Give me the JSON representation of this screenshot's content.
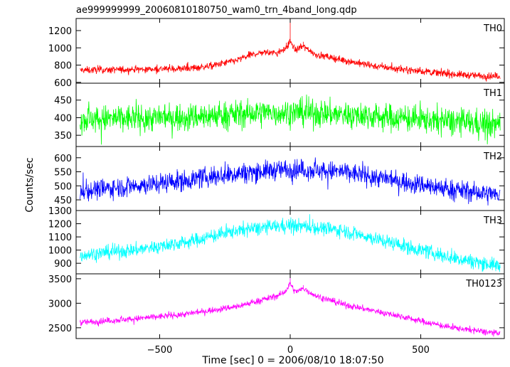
{
  "chart_data": {
    "type": "line",
    "title": "ae999999999_20060810180750_wam0_trn_4band_long.qdp",
    "xlabel": "Time [sec] 0 = 2006/08/10 18:07:50",
    "ylabel": "Counts/sec",
    "xlim": [
      -820,
      820
    ],
    "x_ticks": [
      -500,
      0,
      500
    ],
    "grid": false,
    "panels": [
      {
        "name": "TH0",
        "color": "#ff0000",
        "ylim": [
          590,
          1340
        ],
        "y_ticks": [
          600,
          800,
          1000,
          1200
        ],
        "series": {
          "x": [
            -820,
            -700,
            -600,
            -500,
            -400,
            -300,
            -200,
            -150,
            -100,
            -50,
            -20,
            0,
            20,
            50,
            100,
            200,
            300,
            400,
            500,
            600,
            700,
            800
          ],
          "y": [
            740,
            745,
            750,
            755,
            760,
            790,
            860,
            920,
            950,
            940,
            980,
            1080,
            970,
            1020,
            920,
            860,
            800,
            760,
            730,
            700,
            680,
            670
          ],
          "noise": 35,
          "spikes": [
            {
              "x": 0,
              "y": 1340
            },
            {
              "x": 50,
              "y": 1070
            },
            {
              "x": -15,
              "y": 1060
            }
          ]
        }
      },
      {
        "name": "TH1",
        "color": "#00ff00",
        "ylim": [
          318,
          498
        ],
        "y_ticks": [
          350,
          400,
          450
        ],
        "series": {
          "x": [
            -820,
            -600,
            -400,
            -200,
            0,
            200,
            400,
            600,
            800
          ],
          "y": [
            395,
            398,
            402,
            410,
            415,
            410,
            400,
            390,
            380
          ],
          "noise": 33,
          "spikes": []
        }
      },
      {
        "name": "TH2",
        "color": "#0000ff",
        "ylim": [
          412,
          640
        ],
        "y_ticks": [
          450,
          500,
          550,
          600
        ],
        "series": {
          "x": [
            -820,
            -600,
            -400,
            -200,
            0,
            200,
            400,
            600,
            800
          ],
          "y": [
            480,
            500,
            520,
            545,
            560,
            550,
            520,
            490,
            465
          ],
          "noise": 30,
          "spikes": []
        }
      },
      {
        "name": "TH3",
        "color": "#00ffff",
        "ylim": [
          820,
          1300
        ],
        "y_ticks": [
          900,
          1000,
          1100,
          1200,
          1300
        ],
        "series": {
          "x": [
            -820,
            -600,
            -400,
            -200,
            0,
            200,
            400,
            600,
            800
          ],
          "y": [
            960,
            1000,
            1060,
            1150,
            1190,
            1150,
            1050,
            950,
            880
          ],
          "noise": 45,
          "spikes": []
        }
      },
      {
        "name": "TH0123",
        "color": "#ff00ff",
        "ylim": [
          2280,
          3600
        ],
        "y_ticks": [
          2500,
          3000,
          3500
        ],
        "series": {
          "x": [
            -820,
            -600,
            -400,
            -200,
            -100,
            -50,
            -20,
            0,
            20,
            50,
            100,
            200,
            400,
            600,
            800
          ],
          "y": [
            2600,
            2680,
            2780,
            2940,
            3080,
            3150,
            3230,
            3400,
            3220,
            3300,
            3150,
            2980,
            2760,
            2520,
            2380
          ],
          "noise": 55,
          "spikes": [
            {
              "x": 0,
              "y": 3600
            },
            {
              "x": 50,
              "y": 3370
            }
          ]
        }
      }
    ]
  }
}
